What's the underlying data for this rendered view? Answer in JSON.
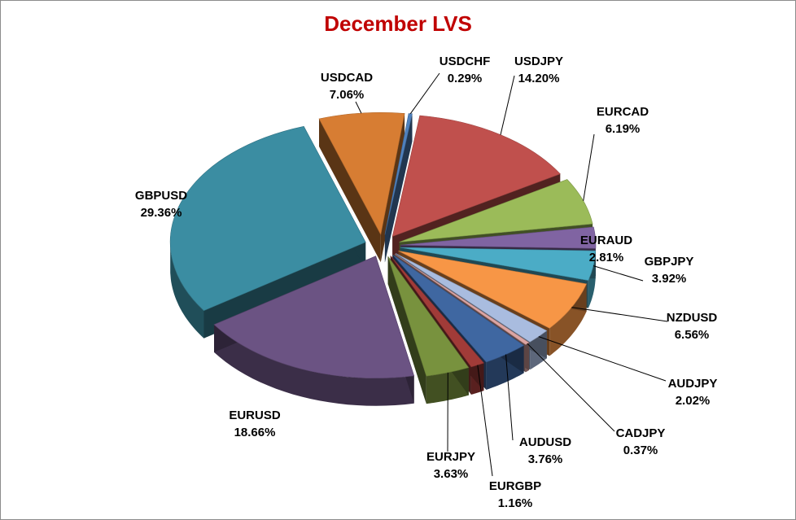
{
  "chart_data": {
    "type": "pie",
    "title": "December LVS",
    "slices": [
      {
        "name": "USDCHF",
        "pct_label": "0.29%",
        "value": 0.29,
        "color": "#4f81bd"
      },
      {
        "name": "USDJPY",
        "pct_label": "14.20%",
        "value": 14.2,
        "color": "#c0504d"
      },
      {
        "name": "EURCAD",
        "pct_label": "6.19%",
        "value": 6.19,
        "color": "#9bbb59"
      },
      {
        "name": "EURAUD",
        "pct_label": "2.81%",
        "value": 2.81,
        "color": "#8064a2"
      },
      {
        "name": "GBPJPY",
        "pct_label": "3.92%",
        "value": 3.92,
        "color": "#4bacc6"
      },
      {
        "name": "NZDUSD",
        "pct_label": "6.56%",
        "value": 6.56,
        "color": "#f79646"
      },
      {
        "name": "AUDJPY",
        "pct_label": "2.02%",
        "value": 2.02,
        "color": "#a9bcdf"
      },
      {
        "name": "CADJPY",
        "pct_label": "0.37%",
        "value": 0.37,
        "color": "#dca5a3"
      },
      {
        "name": "AUDUSD",
        "pct_label": "3.76%",
        "value": 3.76,
        "color": "#3f67a1"
      },
      {
        "name": "EURGBP",
        "pct_label": "1.16%",
        "value": 1.16,
        "color": "#a13b38"
      },
      {
        "name": "EURJPY",
        "pct_label": "3.63%",
        "value": 3.63,
        "color": "#78923e"
      },
      {
        "name": "EURUSD",
        "pct_label": "18.66%",
        "value": 18.66,
        "color": "#6b5383"
      },
      {
        "name": "GBPUSD",
        "pct_label": "29.36%",
        "value": 29.36,
        "color": "#3b8da2"
      },
      {
        "name": "USDCAD",
        "pct_label": "7.06%",
        "value": 7.06,
        "color": "#d77d33"
      }
    ]
  }
}
